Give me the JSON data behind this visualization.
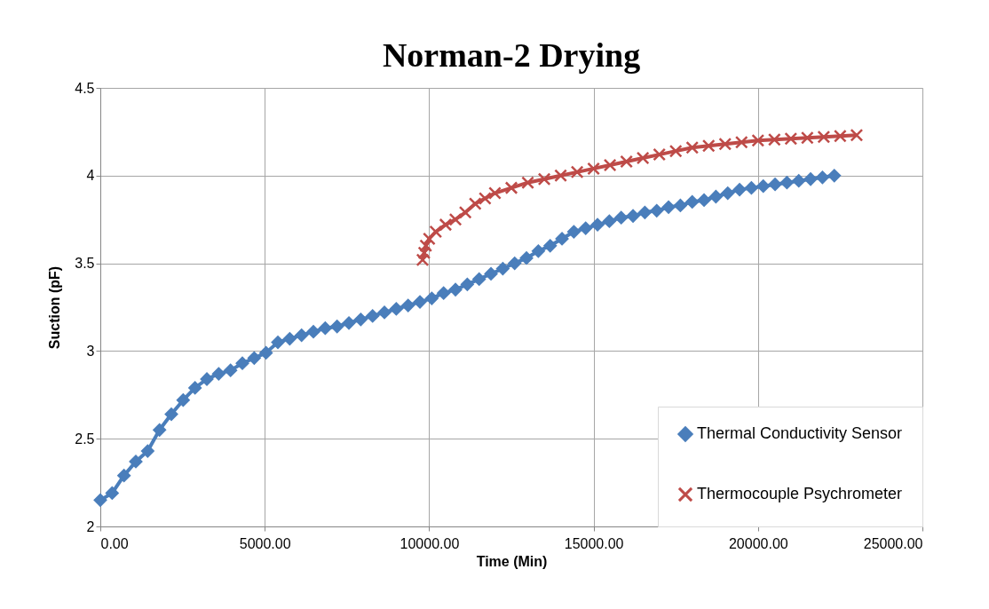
{
  "chart_data": {
    "type": "line",
    "title": "Norman-2 Drying",
    "xlabel": "Time (Min)",
    "ylabel": "Suction (pF)",
    "xlim": [
      0,
      25000
    ],
    "xticks": [
      {
        "value": 0,
        "label": "0.00"
      },
      {
        "value": 5000,
        "label": "5000.00"
      },
      {
        "value": 10000,
        "label": "10000.00"
      },
      {
        "value": 15000,
        "label": "15000.00"
      },
      {
        "value": 20000,
        "label": "20000.00"
      },
      {
        "value": 25000,
        "label": "25000.00"
      }
    ],
    "ylim": [
      2,
      4.5
    ],
    "yticks": [
      2,
      2.5,
      3,
      3.5,
      4,
      4.5
    ],
    "grid": true,
    "legend": "bottom right",
    "series": [
      {
        "name": "Thermal Conductivity Sensor",
        "color": "#4a7ebb",
        "marker": "diamond",
        "x": [
          0,
          360,
          720,
          1080,
          1440,
          1800,
          2160,
          2520,
          2880,
          3240,
          3600,
          3960,
          4320,
          4680,
          5040,
          5400,
          5760,
          6120,
          6480,
          6840,
          7200,
          7560,
          7920,
          8280,
          8640,
          9000,
          9360,
          9720,
          10080,
          10440,
          10800,
          11160,
          11520,
          11880,
          12240,
          12600,
          12960,
          13320,
          13680,
          14040,
          14400,
          14760,
          15120,
          15480,
          15840,
          16200,
          16560,
          16920,
          17280,
          17640,
          18000,
          18360,
          18720,
          19080,
          19440,
          19800,
          20160,
          20520,
          20880,
          21240,
          21600,
          21960,
          22320
        ],
        "values": [
          2.15,
          2.19,
          2.29,
          2.37,
          2.43,
          2.55,
          2.64,
          2.72,
          2.79,
          2.84,
          2.87,
          2.89,
          2.93,
          2.96,
          2.99,
          3.05,
          3.07,
          3.09,
          3.11,
          3.13,
          3.14,
          3.16,
          3.18,
          3.2,
          3.22,
          3.24,
          3.26,
          3.28,
          3.3,
          3.33,
          3.35,
          3.38,
          3.41,
          3.44,
          3.47,
          3.5,
          3.53,
          3.57,
          3.6,
          3.64,
          3.68,
          3.7,
          3.72,
          3.74,
          3.76,
          3.77,
          3.79,
          3.8,
          3.82,
          3.83,
          3.85,
          3.86,
          3.88,
          3.9,
          3.92,
          3.93,
          3.94,
          3.95,
          3.96,
          3.97,
          3.98,
          3.99,
          4.0
        ]
      },
      {
        "name": "Thermocouple Psychrometer",
        "color": "#be4b48",
        "marker": "cross",
        "x": [
          9800,
          9850,
          9900,
          10000,
          10200,
          10500,
          10800,
          11100,
          11400,
          11700,
          12000,
          12500,
          13000,
          13500,
          14000,
          14500,
          15000,
          15500,
          16000,
          16500,
          17000,
          17500,
          18000,
          18500,
          19000,
          19500,
          20000,
          20500,
          21000,
          21500,
          22000,
          22500,
          23000
        ],
        "values": [
          3.52,
          3.56,
          3.6,
          3.64,
          3.68,
          3.72,
          3.75,
          3.79,
          3.84,
          3.87,
          3.9,
          3.93,
          3.96,
          3.98,
          4.0,
          4.02,
          4.04,
          4.06,
          4.08,
          4.1,
          4.12,
          4.14,
          4.16,
          4.17,
          4.18,
          4.19,
          4.2,
          4.205,
          4.21,
          4.215,
          4.22,
          4.225,
          4.23
        ]
      }
    ]
  }
}
